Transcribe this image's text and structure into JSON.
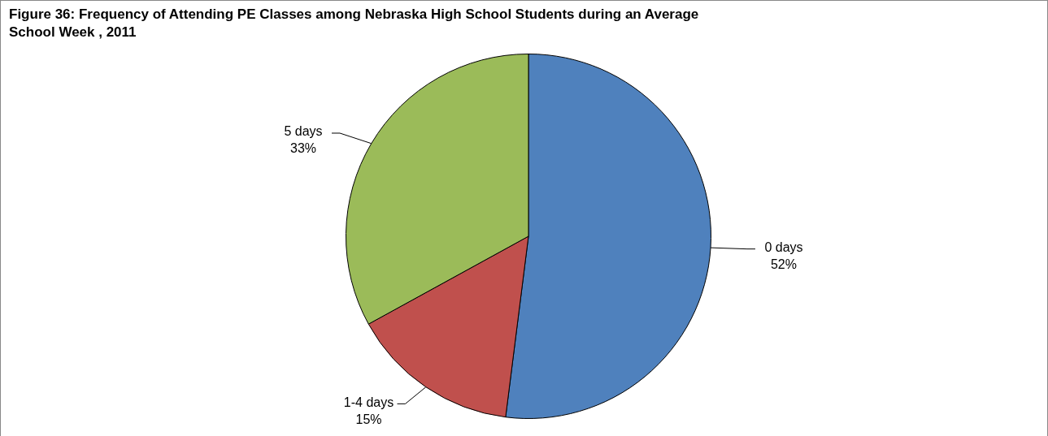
{
  "chart_data": {
    "type": "pie",
    "title": "Figure 36: Frequency of Attending PE Classes among Nebraska High School Students during an Average School Week , 2011",
    "categories": [
      "0 days",
      "1-4 days",
      "5 days"
    ],
    "values": [
      52,
      15,
      33
    ],
    "colors": [
      "#4f81bd",
      "#c0504d",
      "#9bbb59"
    ],
    "value_labels": [
      "52%",
      "15%",
      "33%"
    ],
    "legend": false
  }
}
